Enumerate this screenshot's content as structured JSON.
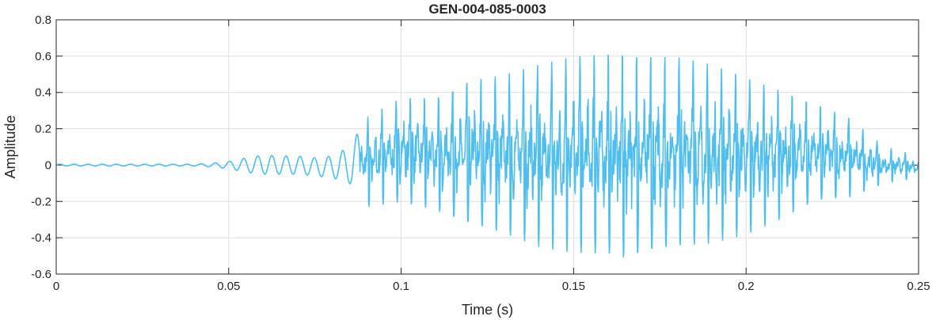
{
  "chart_data": {
    "type": "line",
    "title": "GEN-004-085-0003",
    "xlabel": "Time (s)",
    "ylabel": "Amplitude",
    "xlim": [
      0,
      0.25
    ],
    "ylim": [
      -0.6,
      0.8
    ],
    "xticks": [
      0,
      0.05,
      0.1,
      0.15,
      0.2,
      0.25
    ],
    "xtick_labels": [
      "0",
      "0.05",
      "0.1",
      "0.15",
      "0.2",
      "0.25"
    ],
    "yticks": [
      -0.6,
      -0.4,
      -0.2,
      0,
      0.2,
      0.4,
      0.6,
      0.8
    ],
    "ytick_labels": [
      "-0.6",
      "-0.4",
      "-0.2",
      "0",
      "0.2",
      "0.4",
      "0.6",
      "0.8"
    ],
    "grid": true,
    "line_color": "#4DBEEE",
    "series": [
      {
        "x": [
          0,
          0.01,
          0.02,
          0.03,
          0.04,
          0.045,
          0.05,
          0.055,
          0.06,
          0.065,
          0.07,
          0.075,
          0.08,
          0.085,
          0.09,
          0.1,
          0.11,
          0.12,
          0.13,
          0.14,
          0.15,
          0.16,
          0.165,
          0.17,
          0.18,
          0.19,
          0.2,
          0.21,
          0.22,
          0.23,
          0.24,
          0.25
        ],
        "envelope_max": [
          0.005,
          0.005,
          0.005,
          0.005,
          0.005,
          0.01,
          0.02,
          0.04,
          0.055,
          0.05,
          0.05,
          0.04,
          0.05,
          0.1,
          0.26,
          0.37,
          0.38,
          0.48,
          0.5,
          0.55,
          0.6,
          0.63,
          0.64,
          0.62,
          0.6,
          0.55,
          0.48,
          0.42,
          0.35,
          0.26,
          0.1,
          0.05
        ],
        "envelope_min": [
          -0.005,
          -0.005,
          -0.005,
          -0.005,
          -0.005,
          -0.01,
          -0.02,
          -0.04,
          -0.05,
          -0.05,
          -0.05,
          -0.06,
          -0.07,
          -0.1,
          -0.23,
          -0.2,
          -0.25,
          -0.33,
          -0.38,
          -0.45,
          -0.48,
          -0.49,
          -0.52,
          -0.49,
          -0.45,
          -0.43,
          -0.38,
          -0.3,
          -0.2,
          -0.18,
          -0.1,
          -0.07
        ]
      }
    ]
  }
}
